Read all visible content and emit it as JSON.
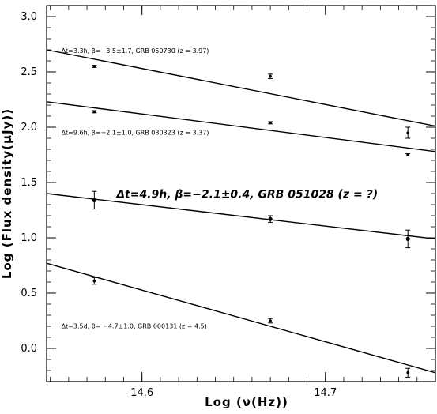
{
  "chart_data": {
    "type": "scatter",
    "title": "",
    "xlabel": "Log (ν(Hz))",
    "ylabel": "Log (Flux density(μJy))",
    "xlim": [
      14.548,
      14.76
    ],
    "ylim": [
      -0.3,
      3.1
    ],
    "x_ticks": [
      {
        "value": 14.6,
        "label": "14.6"
      },
      {
        "value": 14.7,
        "label": "14.7"
      }
    ],
    "y_ticks": [
      {
        "value": 0.0,
        "label": "0.0"
      },
      {
        "value": 0.5,
        "label": "0.5"
      },
      {
        "value": 1.0,
        "label": "1.0"
      },
      {
        "value": 1.5,
        "label": "1.5"
      },
      {
        "value": 2.0,
        "label": "2.0"
      },
      {
        "value": 2.5,
        "label": "2.5"
      },
      {
        "value": 3.0,
        "label": "3.0"
      }
    ],
    "series": [
      {
        "points": [
          {
            "x": 14.574,
            "y": 2.55,
            "err": 0.01
          },
          {
            "x": 14.67,
            "y": 2.46,
            "err": 0.02
          },
          {
            "x": 14.745,
            "y": 1.95,
            "err": 0.05
          }
        ],
        "fit": {
          "x": [
            14.548,
            14.76
          ],
          "y": [
            2.7,
            2.01
          ]
        },
        "annotation": {
          "text": "Δt=3.3h, β=−3.5±1.7, GRB 050730 (z = 3.97)",
          "x": 14.556,
          "y": 2.7
        }
      },
      {
        "points": [
          {
            "x": 14.574,
            "y": 2.14,
            "err": 0.01
          },
          {
            "x": 14.67,
            "y": 2.04,
            "err": 0.01
          },
          {
            "x": 14.745,
            "y": 1.75,
            "err": 0.01
          }
        ],
        "fit": {
          "x": [
            14.548,
            14.76
          ],
          "y": [
            2.23,
            1.78
          ]
        },
        "annotation": {
          "text": "Δt=9.6h, β=−2.1±1.0, GRB 030323 (z = 3.37)",
          "x": 14.556,
          "y": 1.96
        }
      },
      {
        "points": [
          {
            "x": 14.574,
            "y": 1.34,
            "err": 0.08
          },
          {
            "x": 14.67,
            "y": 1.17,
            "err": 0.03
          },
          {
            "x": 14.745,
            "y": 0.99,
            "err": 0.08
          }
        ],
        "fit": {
          "x": [
            14.548,
            14.76
          ],
          "y": [
            1.4,
            0.99
          ]
        },
        "annotation": {
          "text": "Δt=4.9h, β=−2.1±0.4, GRB 051028 (z = ?)",
          "x": 14.586,
          "y": 1.39
        }
      },
      {
        "points": [
          {
            "x": 14.574,
            "y": 0.61,
            "err": 0.03
          },
          {
            "x": 14.67,
            "y": 0.25,
            "err": 0.02
          },
          {
            "x": 14.745,
            "y": -0.22,
            "err": 0.04
          }
        ],
        "fit": {
          "x": [
            14.548,
            14.76
          ],
          "y": [
            0.77,
            -0.22
          ]
        },
        "annotation": {
          "text": "Δt=3.5d, β= −4.7±1.0, GRB 000131 (z = 4.5)",
          "x": 14.556,
          "y": 0.21
        }
      }
    ]
  }
}
